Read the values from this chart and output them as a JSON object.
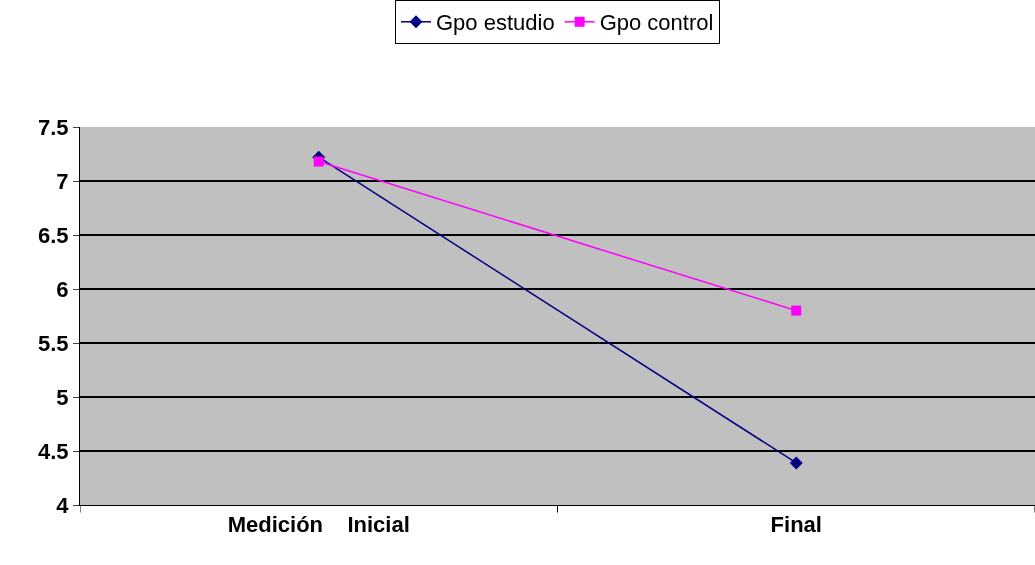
{
  "chart_data": {
    "type": "line",
    "categories": [
      "Medición    Inicial",
      "Final"
    ],
    "series": [
      {
        "name": "Gpo estudio",
        "color": "#000080",
        "values": [
          7.22,
          4.39
        ],
        "marker": "diamond"
      },
      {
        "name": "Gpo control",
        "color": "#ff00ff",
        "values": [
          7.18,
          5.8
        ],
        "marker": "square"
      }
    ],
    "ylim": [
      4,
      7.5
    ],
    "yticks": [
      4,
      4.5,
      5,
      5.5,
      6,
      6.5,
      7,
      7.5
    ],
    "grid": "y",
    "legend": "top",
    "line_style": "solid"
  }
}
